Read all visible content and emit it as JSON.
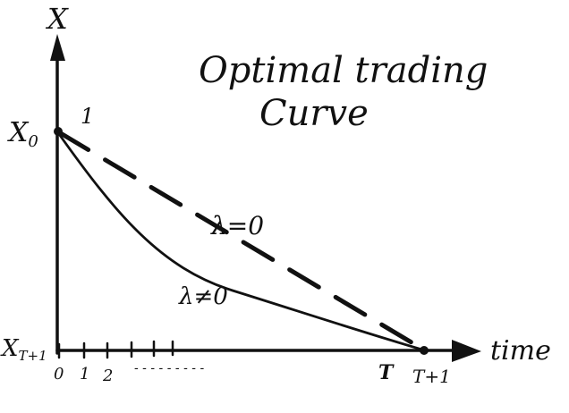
{
  "title_line1": "Optimal trading",
  "title_line2": "Curve",
  "y_axis_label": "X",
  "x_axis_label": "time",
  "y_start_label": "X",
  "y_start_sub": "0",
  "y_end_label": "X",
  "y_end_sub": "T+1",
  "start_point_label": "1",
  "x_ticks": [
    "0",
    "1",
    "2",
    "T",
    "T+1"
  ],
  "ellipsis": "- - - - - - - - -",
  "curves": [
    {
      "name": "λ=0",
      "style": "dashed",
      "shape": "linear"
    },
    {
      "name": "λ≠0",
      "style": "solid",
      "shape": "convex"
    }
  ]
}
